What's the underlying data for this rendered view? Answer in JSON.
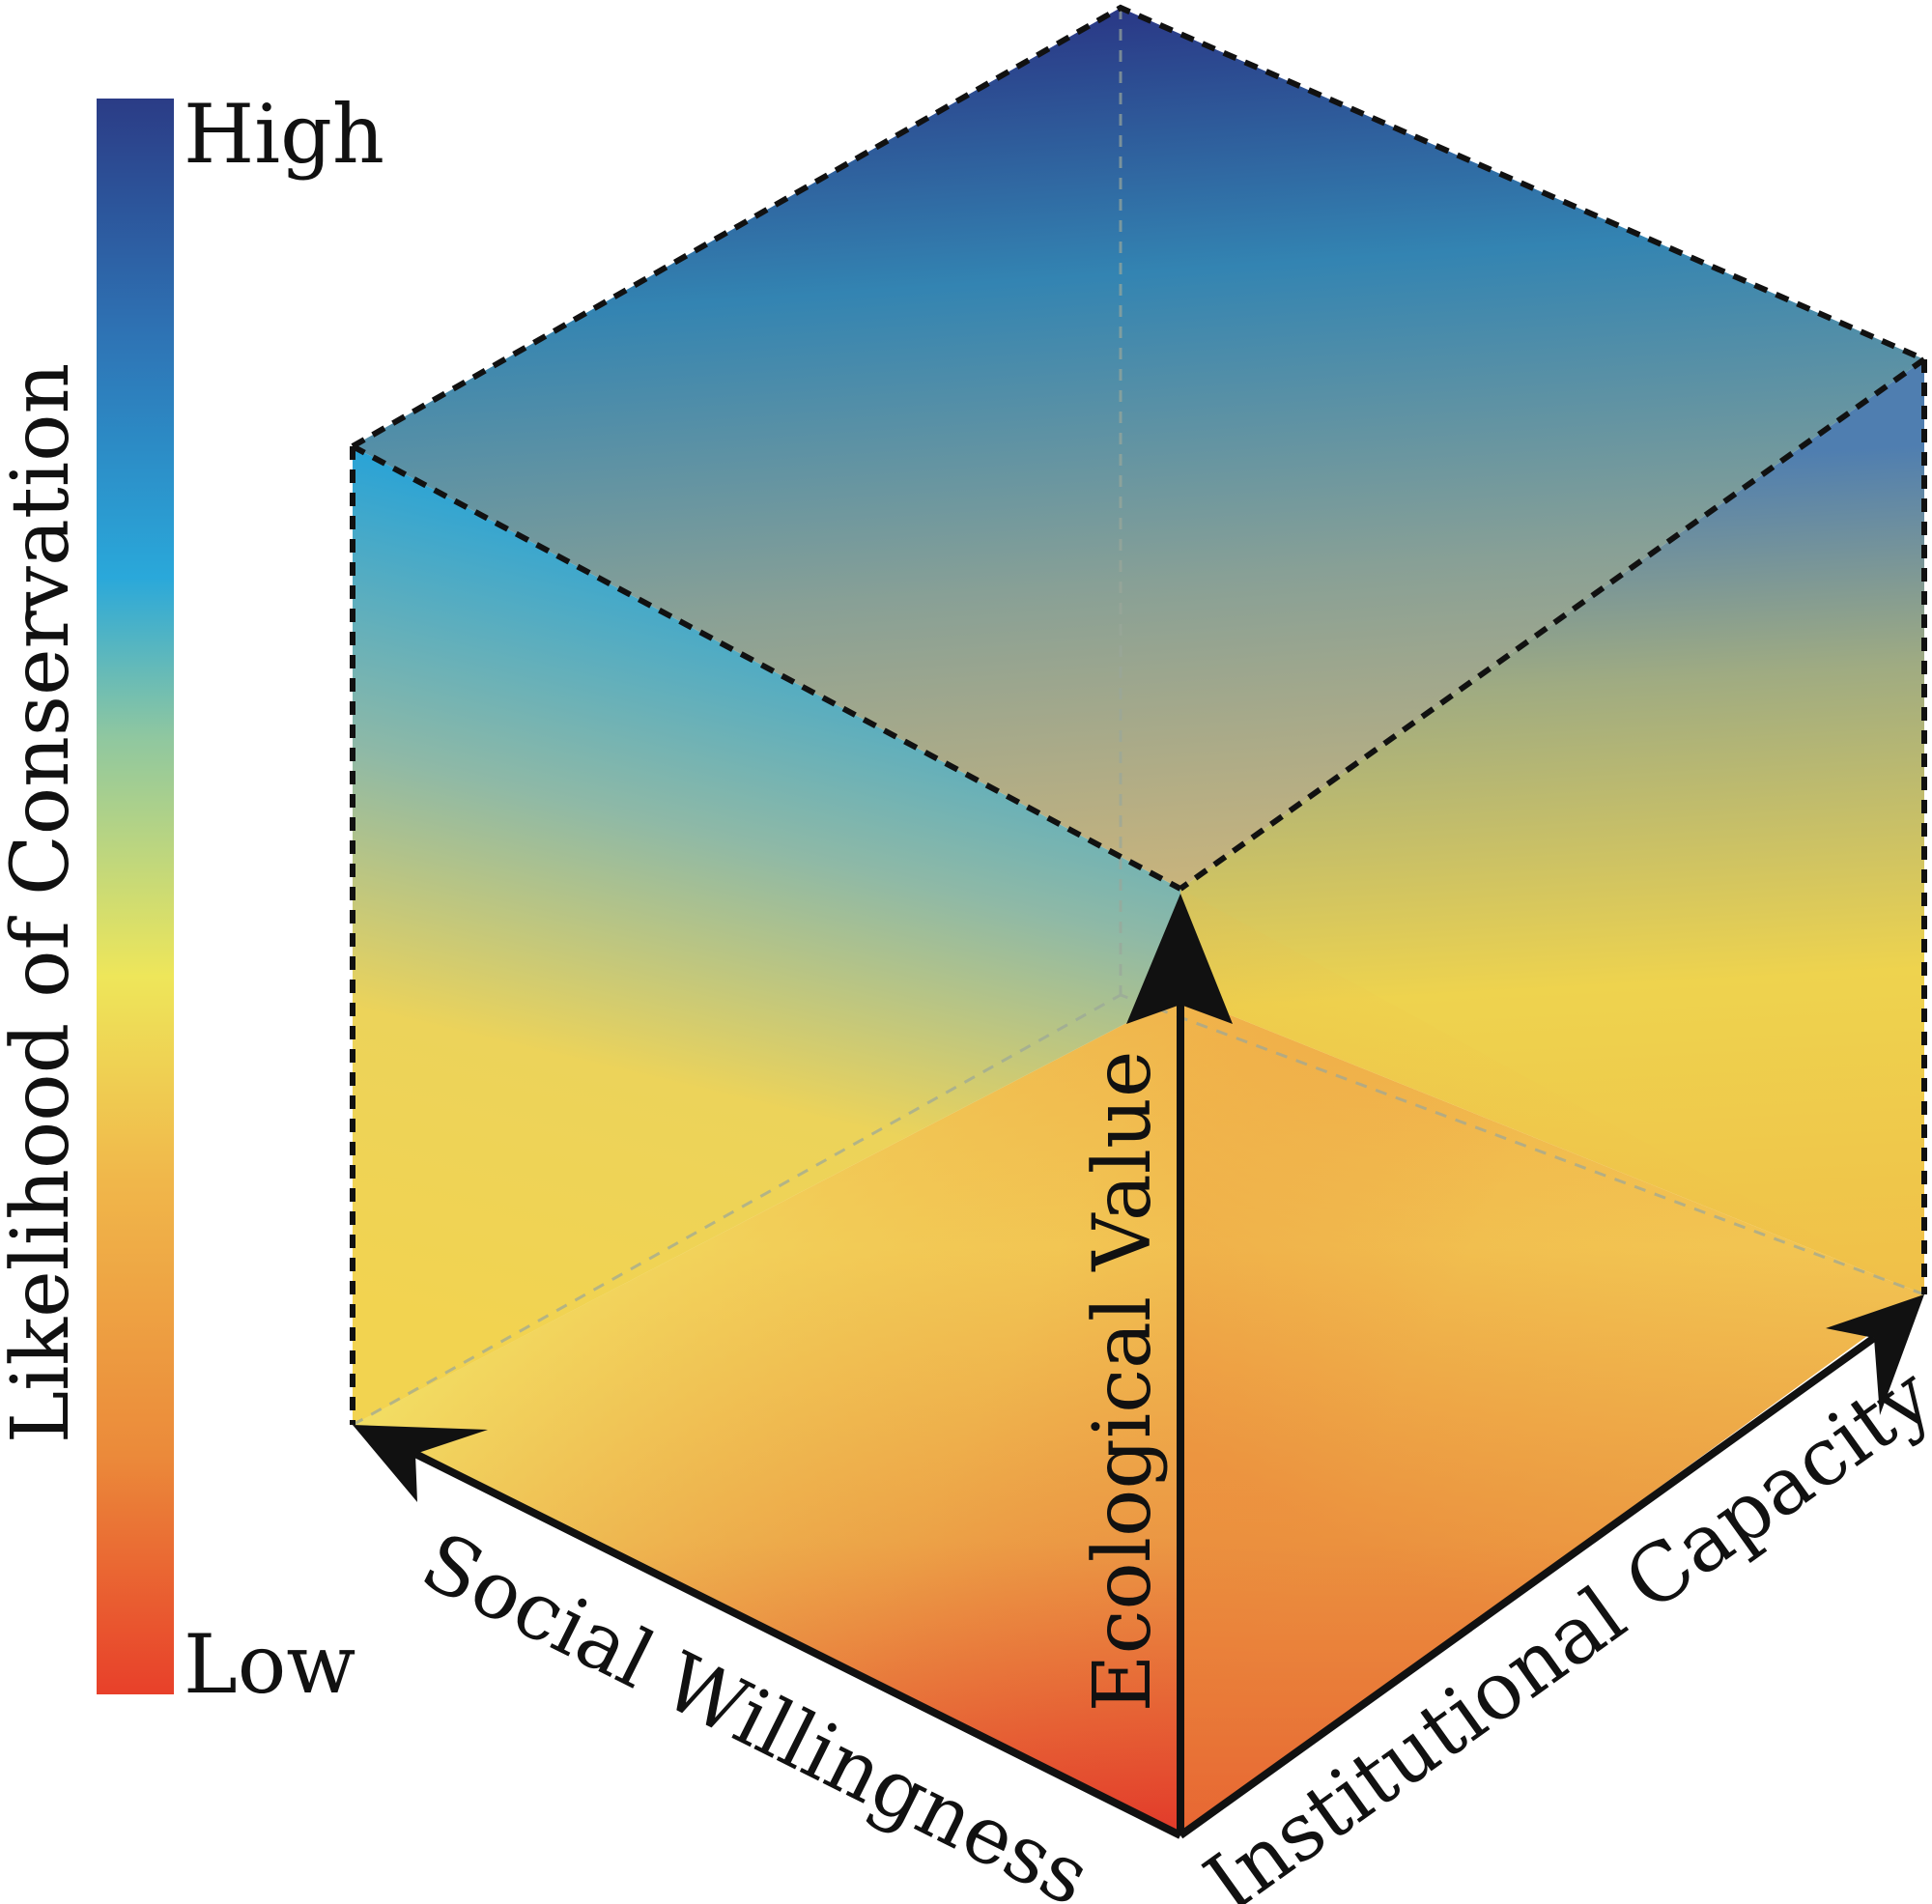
{
  "legend": {
    "title": "Likelihood of Conservation",
    "high_label": "High",
    "low_label": "Low",
    "colors": [
      "#e8402a",
      "#eb8a3a",
      "#f0b64a",
      "#eee65a",
      "#8fc7a0",
      "#2aa8da",
      "#2e74b5",
      "#2b3c86"
    ]
  },
  "axes": {
    "vertical": "Ecological Value",
    "left": "Social Willingness",
    "right": "Institutional Capacity"
  },
  "colors": {
    "low": "#e23a2a",
    "mid_low": "#eda14a",
    "mid": "#f0d453",
    "mid_high": "#8fc0a8",
    "high": "#2b3a85",
    "bright_blue": "#2aa8da",
    "stroke": "#111111"
  }
}
